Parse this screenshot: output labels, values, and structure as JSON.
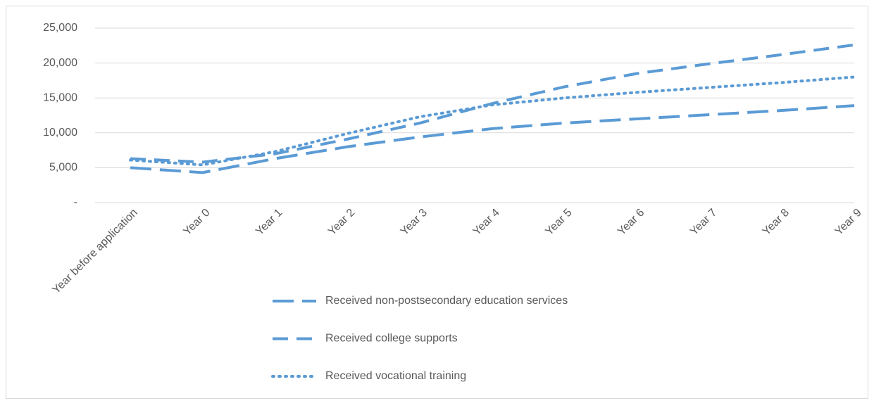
{
  "chart_data": {
    "type": "line",
    "categories": [
      "Year before application",
      "Year 0",
      "Year 1",
      "Year 2",
      "Year 3",
      "Year 4",
      "Year 5",
      "Year 6",
      "Year 7",
      "Year 8",
      "Year 9"
    ],
    "series": [
      {
        "name": "Received non-postsecondary education services",
        "color": "#5b9bd5",
        "values": [
          5000,
          4300,
          6300,
          8000,
          9400,
          10600,
          11400,
          12000,
          12600,
          13200,
          13900
        ]
      },
      {
        "name": "Received college supports",
        "color": "#5b9bd5",
        "values": [
          6300,
          5800,
          7000,
          9100,
          11400,
          14200,
          16600,
          18500,
          19900,
          21200,
          22600
        ]
      },
      {
        "name": "Received vocational training",
        "color": "#5b9bd5",
        "values": [
          6100,
          5400,
          7300,
          9900,
          12300,
          14000,
          15000,
          15800,
          16500,
          17200,
          18000
        ]
      }
    ],
    "ylim": [
      0,
      25000
    ],
    "yticks": [
      {
        "value": 0,
        "label": "-"
      },
      {
        "value": 5000,
        "label": "5,000"
      },
      {
        "value": 10000,
        "label": "10,000"
      },
      {
        "value": 15000,
        "label": "15,000"
      },
      {
        "value": 20000,
        "label": "20,000"
      },
      {
        "value": 25000,
        "label": "25,000"
      }
    ],
    "grid": true,
    "legend": "bottom"
  }
}
